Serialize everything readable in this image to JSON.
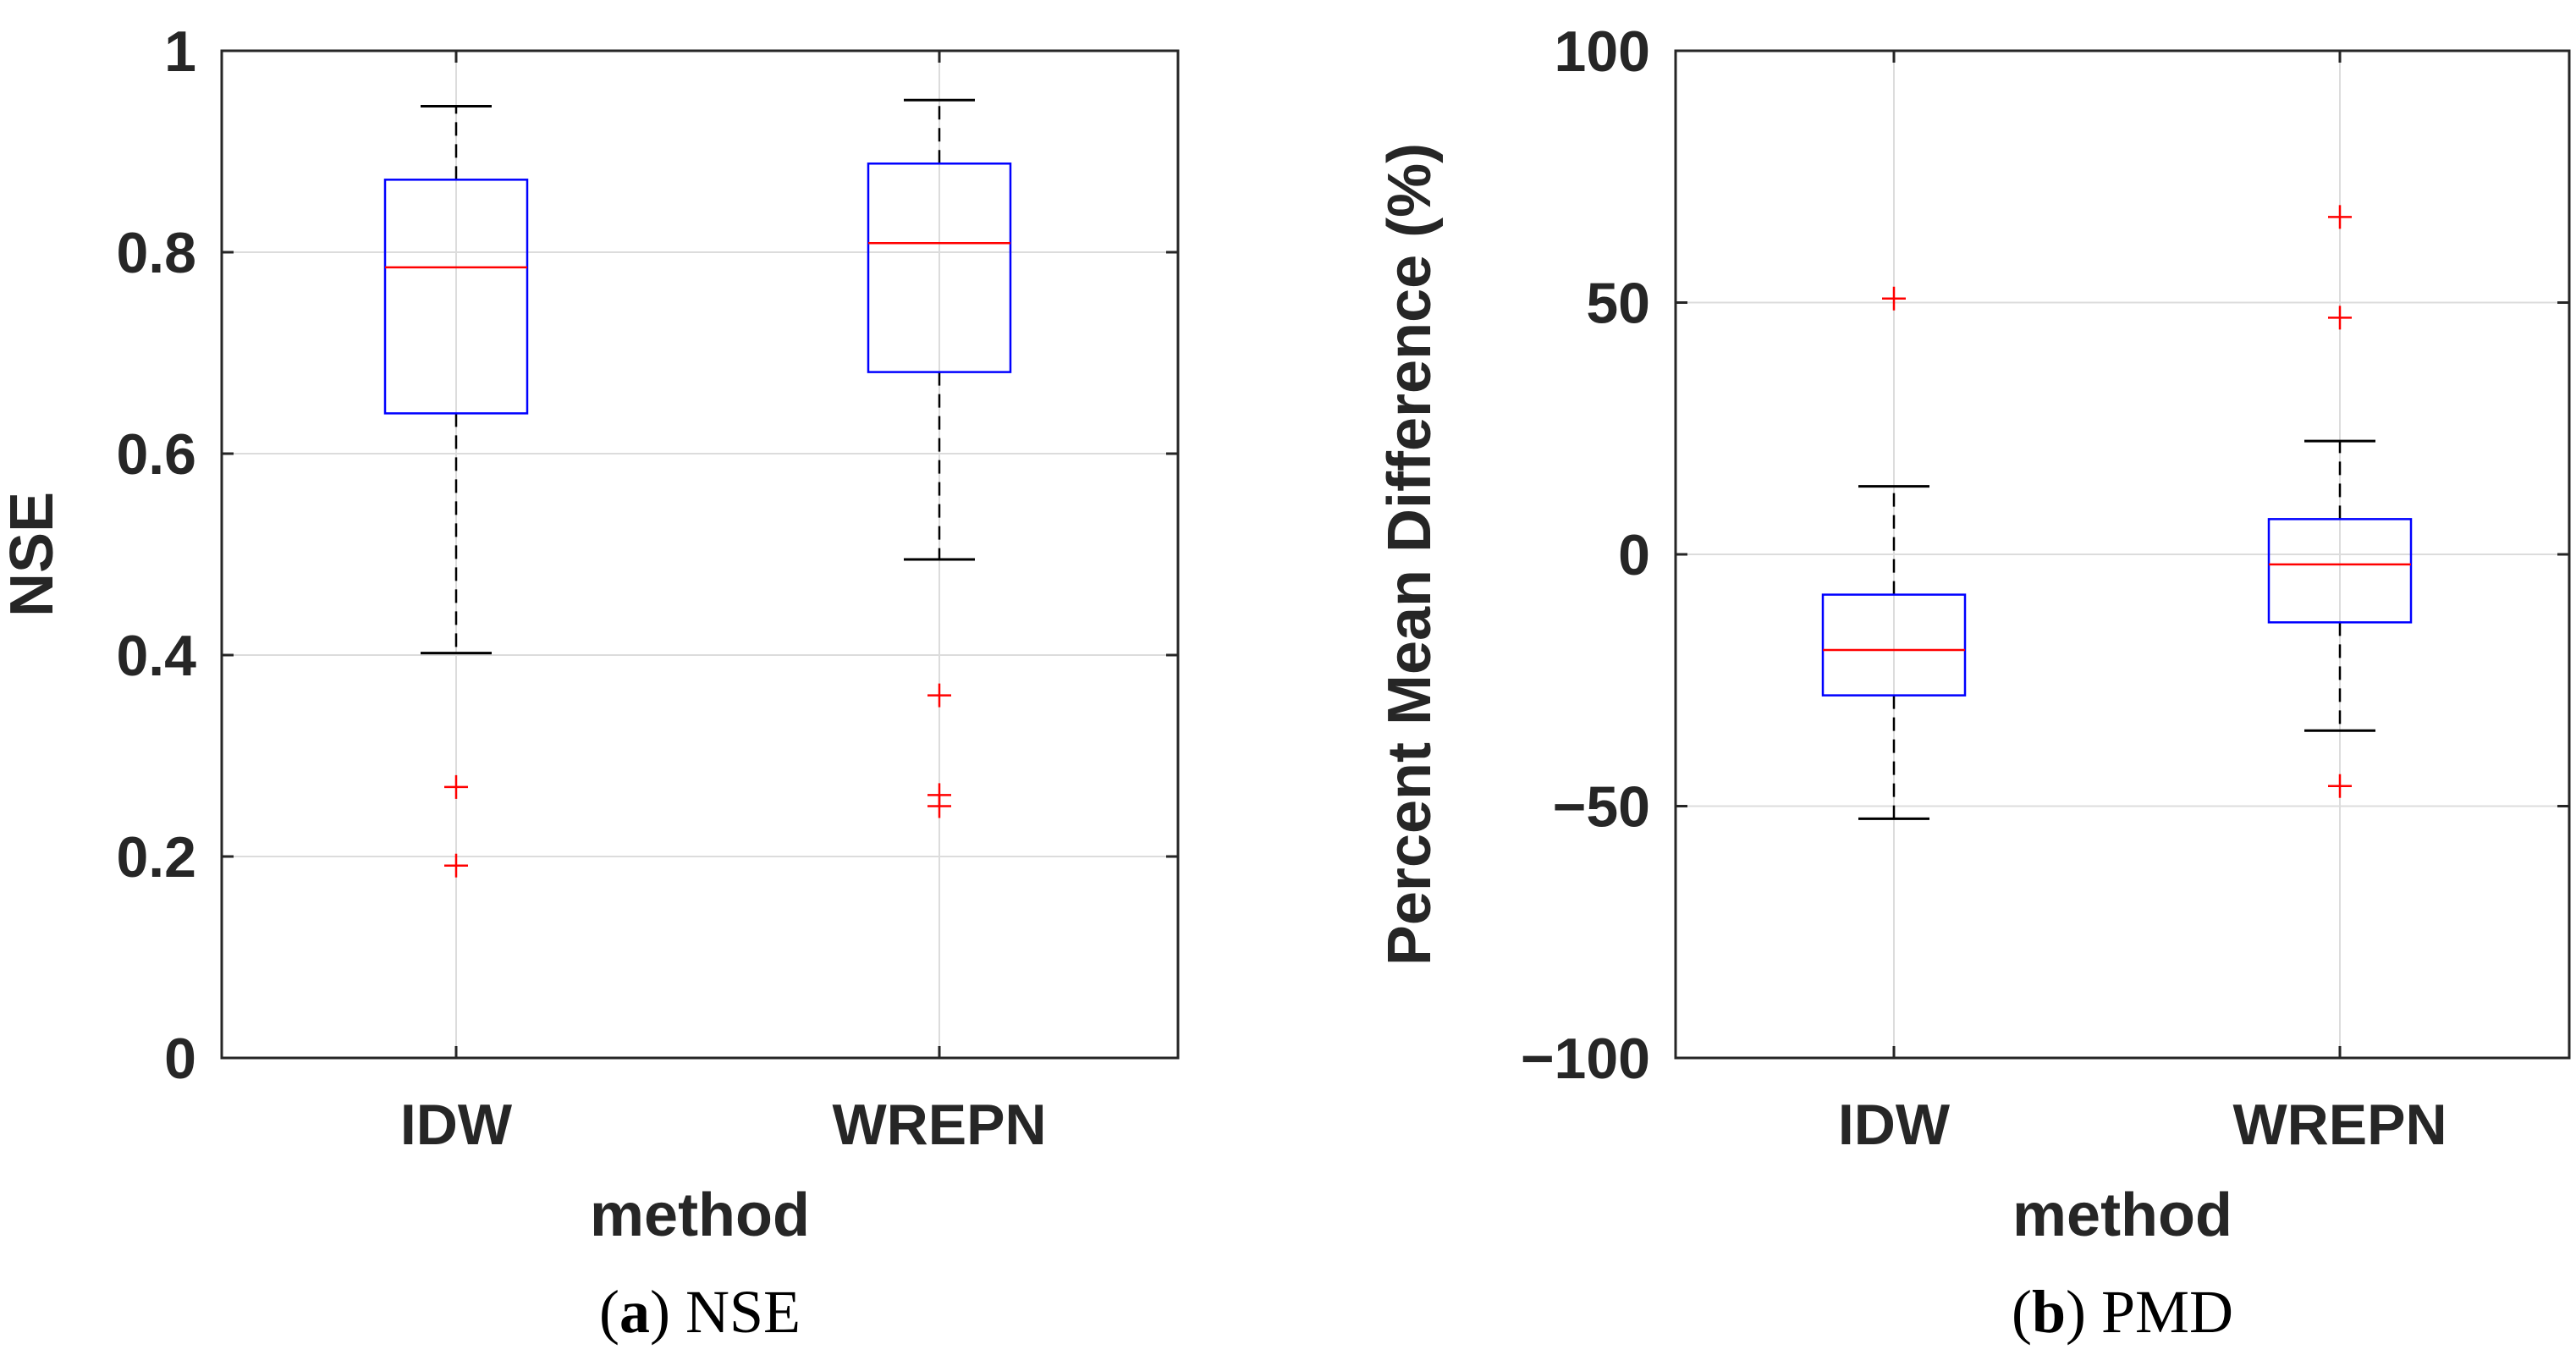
{
  "chart_data": [
    {
      "type": "boxplot",
      "panel_tag": "a",
      "caption": "NSE",
      "ylabel": "NSE",
      "xlabel": "method",
      "ylim": [
        0,
        1
      ],
      "yticks": [
        0,
        0.2,
        0.4,
        0.6,
        0.8,
        1
      ],
      "ytick_labels": [
        "0",
        "0.2",
        "0.4",
        "0.6",
        "0.8",
        "1"
      ],
      "grid": true,
      "categories": [
        "IDW",
        "WREPN"
      ],
      "boxes": [
        {
          "name": "IDW",
          "whisker_low": 0.402,
          "q1": 0.64,
          "median": 0.785,
          "q3": 0.872,
          "whisker_high": 0.945,
          "outliers": [
            0.269,
            0.191
          ]
        },
        {
          "name": "WREPN",
          "whisker_low": 0.495,
          "q1": 0.681,
          "median": 0.809,
          "q3": 0.888,
          "whisker_high": 0.951,
          "outliers": [
            0.36,
            0.261,
            0.25
          ]
        }
      ]
    },
    {
      "type": "boxplot",
      "panel_tag": "b",
      "caption": "PMD",
      "ylabel": "Percent Mean Difference (%)",
      "xlabel": "method",
      "ylim": [
        -100,
        100
      ],
      "yticks": [
        -100,
        -50,
        0,
        50,
        100
      ],
      "ytick_labels": [
        "−100",
        "−50",
        "0",
        "50",
        "100"
      ],
      "grid": true,
      "categories": [
        "IDW",
        "WREPN"
      ],
      "boxes": [
        {
          "name": "IDW",
          "whisker_low": -52.5,
          "q1": -28.0,
          "median": -19.0,
          "q3": -8.0,
          "whisker_high": 13.5,
          "outliers": [
            50.8
          ]
        },
        {
          "name": "WREPN",
          "whisker_low": -35.0,
          "q1": -13.5,
          "median": -2.0,
          "q3": 7.0,
          "whisker_high": 22.5,
          "outliers": [
            67.0,
            47.0,
            -46.0
          ]
        }
      ]
    }
  ],
  "colors": {
    "box": "#0000ff",
    "median": "#ff0000",
    "outlier": "#ff0000",
    "whisker": "#000000",
    "grid": "#dcdcdc",
    "axis": "#262626"
  }
}
